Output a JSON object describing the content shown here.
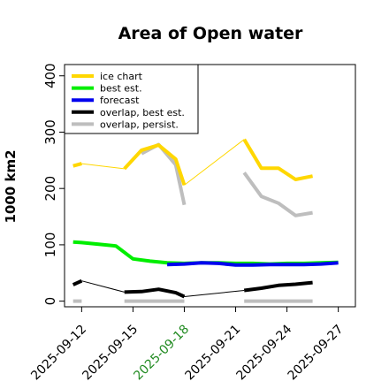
{
  "chart_data": {
    "type": "line",
    "title": "Area of Open water",
    "ylabel": "1000 km2",
    "xlabel": "",
    "ylim": [
      -10,
      420
    ],
    "yticks": [
      0,
      100,
      200,
      300,
      400
    ],
    "xlim": [
      "2025-09-11",
      "2025-09-28"
    ],
    "xticks": [
      {
        "date": "2025-09-12",
        "label": "2025-09-12",
        "color": "#000000"
      },
      {
        "date": "2025-09-15",
        "label": "2025-09-15",
        "color": "#000000"
      },
      {
        "date": "2025-09-18",
        "label": "2025-09-18",
        "color": "#228B22"
      },
      {
        "date": "2025-09-21",
        "label": "2025-09-21",
        "color": "#000000"
      },
      {
        "date": "2025-09-24",
        "label": "2025-09-24",
        "color": "#000000"
      },
      {
        "date": "2025-09-27",
        "label": "2025-09-27",
        "color": "#000000"
      }
    ],
    "legend_position": "top-left",
    "series": [
      {
        "name": "ice chart",
        "color": "#FFD700",
        "linewidth": 4,
        "segments": [
          [
            [
              "2025-09-11 12:00",
              240
            ],
            [
              "2025-09-12",
              244
            ]
          ],
          [
            [
              "2025-09-14 12:00",
              235
            ],
            [
              "2025-09-15 12:00",
              268
            ],
            [
              "2025-09-16 12:00",
              277
            ],
            [
              "2025-09-17 12:00",
              252
            ],
            [
              "2025-09-18",
              206
            ]
          ],
          [
            [
              "2025-09-21 12:00",
              287
            ],
            [
              "2025-09-22 12:00",
              236
            ],
            [
              "2025-09-23 12:00",
              236
            ],
            [
              "2025-09-24 12:00",
              216
            ],
            [
              "2025-09-25 12:00",
              222
            ]
          ]
        ]
      },
      {
        "name": "best est.",
        "color": "#00EE00",
        "linewidth": 4,
        "segments": [
          [
            [
              "2025-09-11 12:00",
              105
            ],
            [
              "2025-09-12",
              104
            ],
            [
              "2025-09-13",
              101
            ],
            [
              "2025-09-14",
              98
            ],
            [
              "2025-09-15",
              75
            ],
            [
              "2025-09-16",
              71
            ],
            [
              "2025-09-17",
              68
            ],
            [
              "2025-09-18",
              67
            ],
            [
              "2025-09-19",
              68
            ],
            [
              "2025-09-20",
              68
            ],
            [
              "2025-09-21",
              67
            ],
            [
              "2025-09-22",
              67
            ],
            [
              "2025-09-23",
              66
            ],
            [
              "2025-09-24",
              67
            ],
            [
              "2025-09-25",
              67
            ],
            [
              "2025-09-26",
              68
            ],
            [
              "2025-09-27",
              69
            ]
          ]
        ]
      },
      {
        "name": "forecast",
        "color": "#0000EE",
        "linewidth": 4,
        "segments": [
          [
            [
              "2025-09-17",
              65
            ],
            [
              "2025-09-18",
              66
            ],
            [
              "2025-09-19",
              68
            ],
            [
              "2025-09-20",
              67
            ],
            [
              "2025-09-21",
              64
            ],
            [
              "2025-09-22",
              64
            ],
            [
              "2025-09-23",
              65
            ],
            [
              "2025-09-24",
              65
            ],
            [
              "2025-09-25",
              65
            ],
            [
              "2025-09-26",
              66
            ],
            [
              "2025-09-27",
              68
            ]
          ]
        ]
      },
      {
        "name": "overlap, best est.",
        "color": "#000000",
        "linewidth": 4,
        "segments": [
          [
            [
              "2025-09-11 12:00",
              29
            ],
            [
              "2025-09-12",
              36
            ]
          ],
          [
            [
              "2025-09-14 12:00",
              16
            ],
            [
              "2025-09-15 12:00",
              17
            ],
            [
              "2025-09-16 12:00",
              21
            ],
            [
              "2025-09-17 12:00",
              15
            ],
            [
              "2025-09-18",
              8
            ]
          ],
          [
            [
              "2025-09-21 12:00",
              19
            ],
            [
              "2025-09-22 12:00",
              23
            ],
            [
              "2025-09-23 12:00",
              28
            ],
            [
              "2025-09-24 12:00",
              30
            ],
            [
              "2025-09-25 12:00",
              33
            ]
          ]
        ]
      },
      {
        "name": "overlap, persist.",
        "color": "#BEBEBE",
        "linewidth": 4,
        "segments": [
          [
            [
              "2025-09-15 12:00",
              262
            ],
            [
              "2025-09-16 12:00",
              278
            ],
            [
              "2025-09-17 12:00",
              242
            ],
            [
              "2025-09-18",
              171
            ]
          ],
          [
            [
              "2025-09-21 12:00",
              228
            ],
            [
              "2025-09-22 12:00",
              186
            ],
            [
              "2025-09-23 12:00",
              174
            ],
            [
              "2025-09-24 12:00",
              152
            ],
            [
              "2025-09-25 12:00",
              157
            ]
          ],
          [
            [
              "2025-09-11 12:00",
              0
            ],
            [
              "2025-09-12",
              0
            ]
          ],
          [
            [
              "2025-09-14 12:00",
              0
            ],
            [
              "2025-09-18",
              0
            ]
          ],
          [
            [
              "2025-09-21 12:00",
              0
            ],
            [
              "2025-09-25 12:00",
              0
            ]
          ]
        ]
      }
    ],
    "connector_lines": [
      {
        "color": "#FFD700",
        "points": [
          [
            "2025-09-12",
            244
          ],
          [
            "2025-09-14 12:00",
            235
          ]
        ]
      },
      {
        "color": "#FFD700",
        "points": [
          [
            "2025-09-18",
            206
          ],
          [
            "2025-09-21 12:00",
            287
          ]
        ]
      },
      {
        "color": "#000000",
        "points": [
          [
            "2025-09-12",
            36
          ],
          [
            "2025-09-14 12:00",
            16
          ]
        ]
      },
      {
        "color": "#000000",
        "points": [
          [
            "2025-09-18",
            8
          ],
          [
            "2025-09-21 12:00",
            19
          ]
        ]
      }
    ]
  }
}
